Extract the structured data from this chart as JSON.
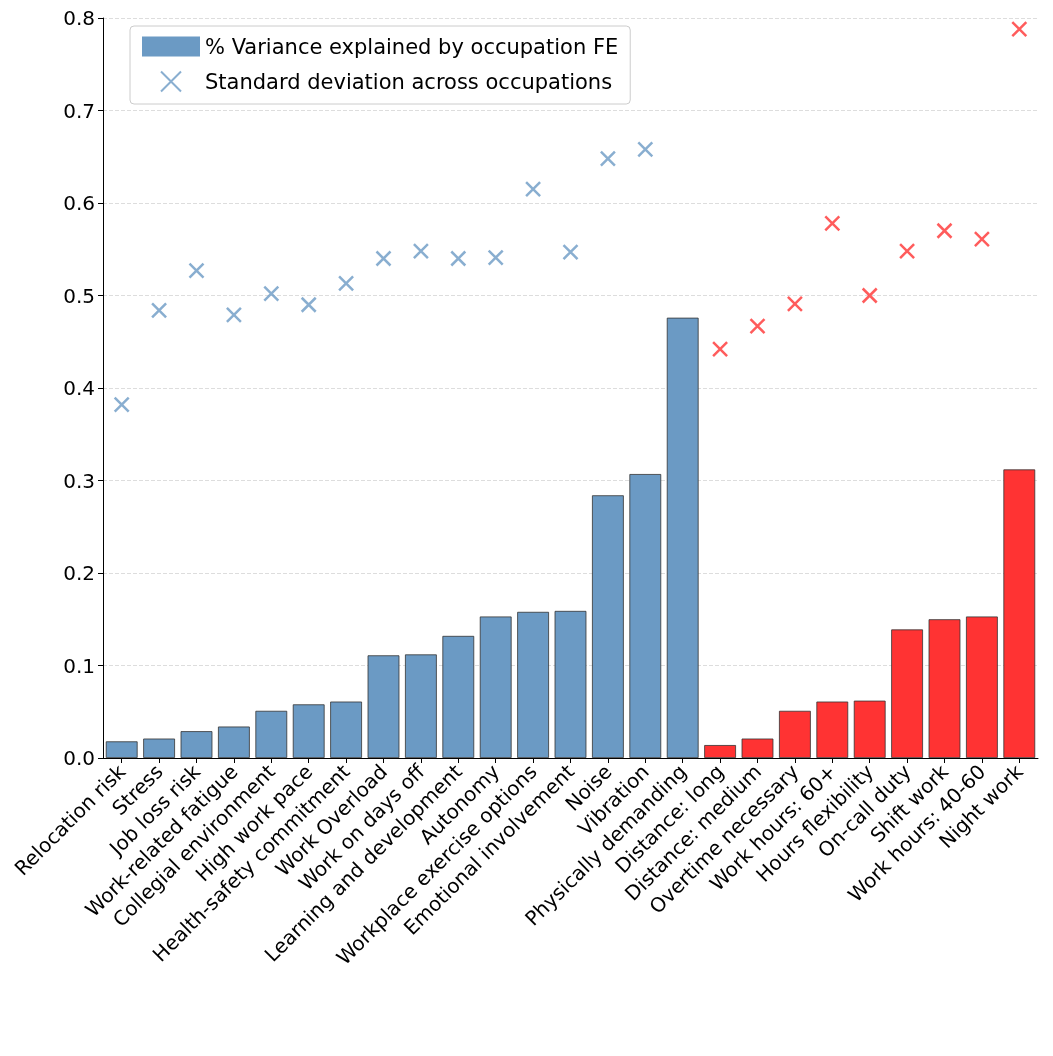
{
  "chart_data": {
    "type": "bar",
    "categories": [
      "Relocation risk",
      "Stress",
      "Job loss risk",
      "Work-related fatigue",
      "Collegial environment",
      "High work pace",
      "Health-safety commitment",
      "Work Overload",
      "Work on days off",
      "Learning and development",
      "Autonomy",
      "Workplace exercise options",
      "Emotional involvement",
      "Noise",
      "Vibration",
      "Physically demanding",
      "Distance: long",
      "Distance: medium",
      "Overtime necessary",
      "Work hours: 60+",
      "Hours flexibility",
      "On-call duty",
      "Shift work",
      "Work hours: 40-60",
      "Night work"
    ],
    "series": [
      {
        "name": "% Variance explained by occupation FE",
        "colors": [
          "#6b9ac4",
          "#6b9ac4",
          "#6b9ac4",
          "#6b9ac4",
          "#6b9ac4",
          "#6b9ac4",
          "#6b9ac4",
          "#6b9ac4",
          "#6b9ac4",
          "#6b9ac4",
          "#6b9ac4",
          "#6b9ac4",
          "#6b9ac4",
          "#6b9ac4",
          "#6b9ac4",
          "#6b9ac4",
          "#ff3333",
          "#ff3333",
          "#ff3333",
          "#ff3333",
          "#ff3333",
          "#ff3333",
          "#ff3333",
          "#ff3333",
          "#ff3333"
        ],
        "values": [
          0.018,
          0.021,
          0.029,
          0.034,
          0.051,
          0.058,
          0.061,
          0.111,
          0.112,
          0.132,
          0.153,
          0.158,
          0.159,
          0.284,
          0.307,
          0.476,
          0.014,
          0.021,
          0.051,
          0.061,
          0.062,
          0.139,
          0.15,
          0.153,
          0.312
        ]
      },
      {
        "name": "Standard deviation across occupations",
        "type": "scatter",
        "marker": "cross",
        "colors": [
          "#6b9ac4",
          "#6b9ac4",
          "#6b9ac4",
          "#6b9ac4",
          "#6b9ac4",
          "#6b9ac4",
          "#6b9ac4",
          "#6b9ac4",
          "#6b9ac4",
          "#6b9ac4",
          "#6b9ac4",
          "#6b9ac4",
          "#6b9ac4",
          "#6b9ac4",
          "#6b9ac4",
          "#6b9ac4",
          "#ff3333",
          "#ff3333",
          "#ff3333",
          "#ff3333",
          "#ff3333",
          "#ff3333",
          "#ff3333",
          "#ff3333",
          "#ff3333"
        ],
        "values": [
          0.382,
          0.484,
          0.527,
          0.479,
          0.502,
          0.49,
          0.513,
          0.54,
          0.548,
          0.54,
          0.541,
          0.615,
          0.547,
          0.648,
          0.658,
          null,
          0.442,
          0.467,
          0.491,
          0.578,
          0.5,
          0.548,
          0.57,
          0.561,
          0.788
        ]
      }
    ],
    "ylim": [
      0,
      0.8
    ],
    "yticks": [
      {
        "value": 0,
        "label": "0.0"
      },
      0.1,
      0.2,
      0.3,
      0.4,
      0.5,
      0.6,
      0.7,
      0.8
    ],
    "grid": "y",
    "legend": "top left"
  }
}
